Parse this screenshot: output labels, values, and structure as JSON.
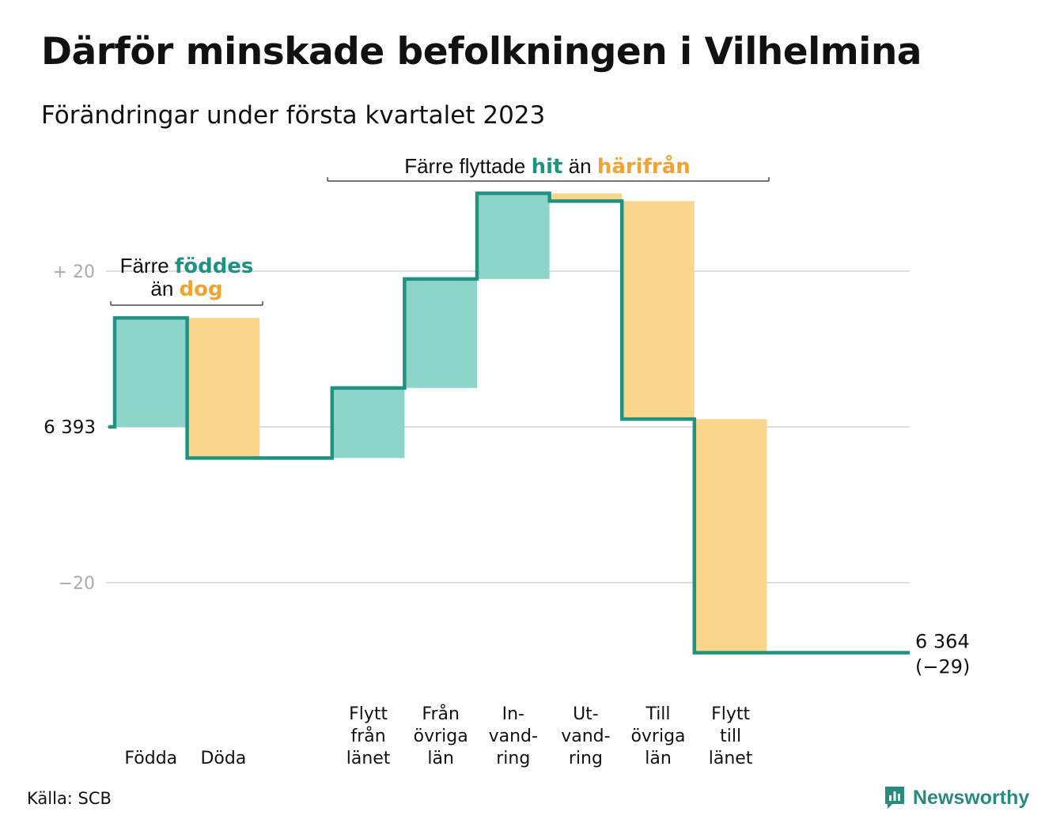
{
  "title": "Därför minskade befolkningen i Vilhelmina",
  "subtitle": "Förändringar under första kvartalet 2023",
  "source": "Källa: SCB",
  "brand": "Newsworthy",
  "colors": {
    "inflow": "#8dd5ca",
    "outflow": "#fad58c",
    "line": "#1f9282",
    "grid": "#dddddd",
    "accent_teal": "#1f9282",
    "accent_orange": "#f0a330"
  },
  "annotations": {
    "births_deaths": {
      "line1_prefix": "Färre ",
      "line1_highlight": "föddes",
      "line2_prefix": "än ",
      "line2_highlight": "dog"
    },
    "migration": {
      "prefix": "Färre flyttade ",
      "highlight1": "hit",
      "middle": " än ",
      "highlight2": "härifrån"
    }
  },
  "chart_data": {
    "type": "waterfall",
    "title": "Därför minskade befolkningen i Vilhelmina",
    "subtitle": "Förändringar under första kvartalet 2023",
    "start_value": 6393,
    "start_label": "6 393",
    "end_value": 6364,
    "end_label": "6 364",
    "end_change_label": "(−29)",
    "y_tick_labels": [
      "+ 20",
      "−20"
    ],
    "y_ticks": [
      20,
      -20
    ],
    "ylim": [
      -32,
      33
    ],
    "grid": true,
    "categories": [
      {
        "label": [
          "Födda"
        ],
        "value": 14,
        "kind": "inflow"
      },
      {
        "label": [
          "Döda"
        ],
        "value": -18,
        "kind": "outflow"
      },
      {
        "label": [],
        "value": 0,
        "kind": "gap"
      },
      {
        "label": [
          "Flytt",
          "från",
          "länet"
        ],
        "value": 9,
        "kind": "inflow"
      },
      {
        "label": [
          "Från",
          "övriga",
          "län"
        ],
        "value": 14,
        "kind": "inflow"
      },
      {
        "label": [
          "In-",
          "vand-",
          "ring"
        ],
        "value": 11,
        "kind": "inflow"
      },
      {
        "label": [
          "Ut-",
          "vand-",
          "ring"
        ],
        "value": -1,
        "kind": "outflow"
      },
      {
        "label": [
          "Till",
          "övriga",
          "län"
        ],
        "value": -28,
        "kind": "outflow"
      },
      {
        "label": [
          "Flytt",
          "till",
          "länet"
        ],
        "value": -30,
        "kind": "outflow"
      }
    ]
  }
}
